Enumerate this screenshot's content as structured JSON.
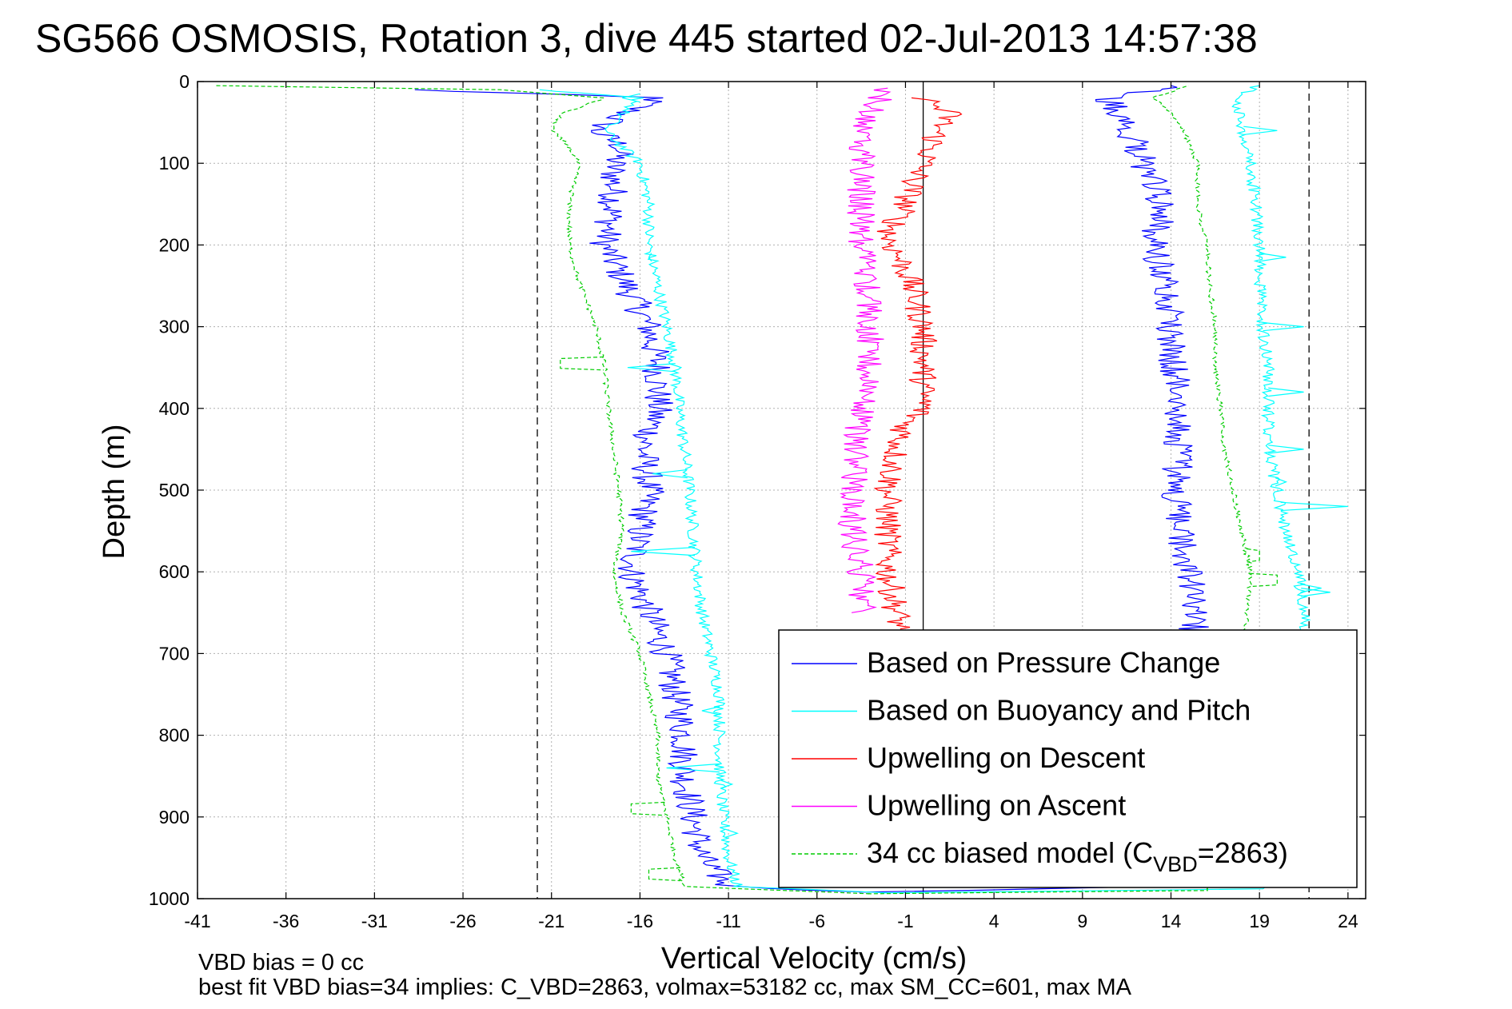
{
  "chart_data": {
    "type": "line",
    "title": "SG566 OSMOSIS, Rotation 3, dive 445 started 02-Jul-2013 14:57:38",
    "xlabel": "Vertical Velocity (cm/s)",
    "ylabel": "Depth (m)",
    "xlim": [
      -41,
      25
    ],
    "ylim": [
      0,
      1000
    ],
    "y_reversed": true,
    "grid": true,
    "xticks": [
      -41,
      -36,
      -31,
      -26,
      -21,
      -16,
      -11,
      -6,
      -1,
      4,
      9,
      14,
      19,
      24
    ],
    "yticks": [
      0,
      100,
      200,
      300,
      400,
      500,
      600,
      700,
      800,
      900,
      1000
    ],
    "reference_lines": [
      {
        "x": -21.8,
        "style": "dashed",
        "color": "#000000"
      },
      {
        "x": 21.8,
        "style": "dashed",
        "color": "#000000"
      },
      {
        "x": 0.0,
        "style": "solid",
        "color": "#000000"
      }
    ],
    "legend_position": "bottom-right",
    "series": [
      {
        "name": "Based on Pressure Change",
        "color": "#0000ff",
        "style": "solid",
        "noise": 0.9,
        "points": [
          [
            -29,
            10
          ],
          [
            -15,
            20
          ],
          [
            -17,
            40
          ],
          [
            -18.5,
            60
          ],
          [
            -17,
            80
          ],
          [
            -17.5,
            100
          ],
          [
            -17.5,
            150
          ],
          [
            -18,
            200
          ],
          [
            -17,
            240
          ],
          [
            -16.5,
            260
          ],
          [
            -15.5,
            300
          ],
          [
            -15,
            350
          ],
          [
            -15,
            400
          ],
          [
            -15.8,
            450
          ],
          [
            -15.5,
            500
          ],
          [
            -16,
            550
          ],
          [
            -16.5,
            600
          ],
          [
            -15.5,
            650
          ],
          [
            -14.5,
            700
          ],
          [
            -14,
            750
          ],
          [
            -13.5,
            800
          ],
          [
            -13.5,
            850
          ],
          [
            -13,
            900
          ],
          [
            -12.5,
            950
          ],
          [
            -11,
            985
          ],
          [
            -3,
            992
          ]
        ],
        "points_ascent": [
          [
            -3,
            992
          ],
          [
            14,
            985
          ],
          [
            15,
            960
          ],
          [
            15.5,
            900
          ],
          [
            15.5,
            800
          ],
          [
            15.5,
            700
          ],
          [
            15.2,
            650
          ],
          [
            15,
            600
          ],
          [
            14.5,
            550
          ],
          [
            14.2,
            500
          ],
          [
            14.5,
            450
          ],
          [
            14.5,
            400
          ],
          [
            14.2,
            350
          ],
          [
            14,
            300
          ],
          [
            14,
            260
          ],
          [
            13.5,
            230
          ],
          [
            13,
            200
          ],
          [
            13.5,
            150
          ],
          [
            12.5,
            100
          ],
          [
            11.5,
            50
          ],
          [
            10.5,
            20
          ],
          [
            14,
            5
          ]
        ]
      },
      {
        "name": "Based on Buoyancy and Pitch",
        "color": "#00ffff",
        "style": "solid",
        "noise": 0.35,
        "points": [
          [
            -22,
            10
          ],
          [
            -16,
            20
          ],
          [
            -17,
            40
          ],
          [
            -18,
            60
          ],
          [
            -17,
            80
          ],
          [
            -16,
            100
          ],
          [
            -15.5,
            150
          ],
          [
            -15.5,
            200
          ],
          [
            -15,
            250
          ],
          [
            -14.5,
            300
          ],
          [
            -14,
            350
          ],
          [
            -13.8,
            400
          ],
          [
            -13.5,
            450
          ],
          [
            -13.2,
            500
          ],
          [
            -13,
            550
          ],
          [
            -12.8,
            600
          ],
          [
            -12.5,
            650
          ],
          [
            -12,
            700
          ],
          [
            -11.5,
            750
          ],
          [
            -11.5,
            800
          ],
          [
            -11.5,
            850
          ],
          [
            -11.3,
            900
          ],
          [
            -11,
            950
          ],
          [
            -10.5,
            985
          ],
          [
            -2,
            993
          ]
        ],
        "points_ascent": [
          [
            -2,
            993
          ],
          [
            19.5,
            988
          ],
          [
            21,
            950
          ],
          [
            21.2,
            900
          ],
          [
            21.5,
            800
          ],
          [
            21.5,
            700
          ],
          [
            21.5,
            650
          ],
          [
            21.2,
            600
          ],
          [
            20.5,
            550
          ],
          [
            20,
            500
          ],
          [
            19.5,
            450
          ],
          [
            19.5,
            400
          ],
          [
            19.5,
            350
          ],
          [
            19.2,
            300
          ],
          [
            19,
            250
          ],
          [
            19,
            200
          ],
          [
            18.8,
            150
          ],
          [
            18.5,
            100
          ],
          [
            18,
            50
          ],
          [
            17.5,
            20
          ],
          [
            19,
            5
          ]
        ],
        "spikes": [
          [
            -10.8,
            860
          ],
          [
            -10.5,
            920
          ],
          [
            -14.5,
            840
          ],
          [
            -15.3,
            480
          ],
          [
            -16.7,
            350
          ],
          [
            -16.5,
            575
          ],
          [
            -12.5,
            770
          ],
          [
            -15.5,
            215
          ],
          [
            -17,
            20
          ],
          [
            20.5,
            490
          ],
          [
            21.5,
            450
          ],
          [
            22,
            730
          ],
          [
            22.5,
            620
          ],
          [
            24,
            520
          ],
          [
            23,
            625
          ],
          [
            21.5,
            300
          ],
          [
            21.5,
            380
          ],
          [
            20.5,
            215
          ],
          [
            20,
            60
          ],
          [
            22,
            825
          ]
        ]
      },
      {
        "name": "Upwelling on Descent",
        "color": "#ff0000",
        "style": "solid",
        "noise": 0.8,
        "points": [
          [
            0,
            20
          ],
          [
            1.5,
            40
          ],
          [
            0.8,
            60
          ],
          [
            0.5,
            80
          ],
          [
            0,
            100
          ],
          [
            -0.5,
            120
          ],
          [
            -1,
            150
          ],
          [
            -1.5,
            170
          ],
          [
            -2,
            190
          ],
          [
            -1.5,
            210
          ],
          [
            -1,
            230
          ],
          [
            -0.5,
            260
          ],
          [
            0,
            300
          ],
          [
            0,
            350
          ],
          [
            0,
            380
          ],
          [
            0,
            400
          ],
          [
            -1,
            420
          ],
          [
            -1.5,
            450
          ],
          [
            -2,
            500
          ],
          [
            -2,
            550
          ],
          [
            -2,
            600
          ],
          [
            -1.5,
            650
          ],
          [
            -1.3,
            670
          ]
        ]
      },
      {
        "name": "Upwelling on Ascent",
        "color": "#ff00ff",
        "style": "solid",
        "noise": 0.8,
        "points": [
          [
            -3.5,
            650
          ],
          [
            -3.5,
            600
          ],
          [
            -4,
            550
          ],
          [
            -4,
            500
          ],
          [
            -3.8,
            450
          ],
          [
            -3.5,
            400
          ],
          [
            -3,
            350
          ],
          [
            -3,
            300
          ],
          [
            -3.2,
            250
          ],
          [
            -3.5,
            200
          ],
          [
            -3.5,
            150
          ],
          [
            -3.5,
            100
          ],
          [
            -3.5,
            50
          ],
          [
            -2.5,
            20
          ],
          [
            -2,
            8
          ]
        ]
      },
      {
        "name": "34 cc biased model (C",
        "name_sub": "VBD",
        "name_suffix": "=2863)",
        "color": "#00cc00",
        "style": "dashed",
        "noise": 0.15,
        "points": [
          [
            -40,
            5
          ],
          [
            -24,
            10
          ],
          [
            -18,
            20
          ],
          [
            -20.5,
            40
          ],
          [
            -21,
            60
          ],
          [
            -20,
            80
          ],
          [
            -19.5,
            100
          ],
          [
            -20,
            150
          ],
          [
            -20,
            200
          ],
          [
            -19.5,
            240
          ],
          [
            -19,
            270
          ],
          [
            -18.5,
            300
          ],
          [
            -18,
            350
          ],
          [
            -17.8,
            400
          ],
          [
            -17.5,
            450
          ],
          [
            -17.2,
            500
          ],
          [
            -17,
            550
          ],
          [
            -17.5,
            600
          ],
          [
            -17,
            650
          ],
          [
            -16,
            700
          ],
          [
            -15.5,
            750
          ],
          [
            -15,
            800
          ],
          [
            -15,
            850
          ],
          [
            -14.5,
            900
          ],
          [
            -14,
            950
          ],
          [
            -13.5,
            985
          ],
          [
            -3,
            994
          ]
        ],
        "points_ascent": [
          [
            -3,
            994
          ],
          [
            16,
            990
          ],
          [
            17,
            960
          ],
          [
            17,
            900
          ],
          [
            17,
            850
          ],
          [
            17.5,
            800
          ],
          [
            17.8,
            750
          ],
          [
            18,
            700
          ],
          [
            18.3,
            650
          ],
          [
            18.5,
            600
          ],
          [
            18,
            550
          ],
          [
            17.5,
            500
          ],
          [
            17,
            450
          ],
          [
            16.8,
            400
          ],
          [
            16.5,
            350
          ],
          [
            16.5,
            300
          ],
          [
            16.2,
            250
          ],
          [
            16,
            200
          ],
          [
            15.5,
            150
          ],
          [
            15.5,
            100
          ],
          [
            14.5,
            50
          ],
          [
            13,
            20
          ],
          [
            15,
            5
          ]
        ],
        "steps": [
          [
            -20.5,
            345
          ],
          [
            -16.5,
            890
          ],
          [
            -15.5,
            970
          ],
          [
            20,
            610
          ],
          [
            19,
            580
          ],
          [
            15.5,
            930
          ]
        ]
      }
    ],
    "annotations": [
      {
        "text": "VBD bias = 0 cc"
      },
      {
        "text": "best fit VBD bias=34 implies: C_VBD=2863, volmax=53182 cc, max SM_CC=601, max MA"
      }
    ]
  }
}
